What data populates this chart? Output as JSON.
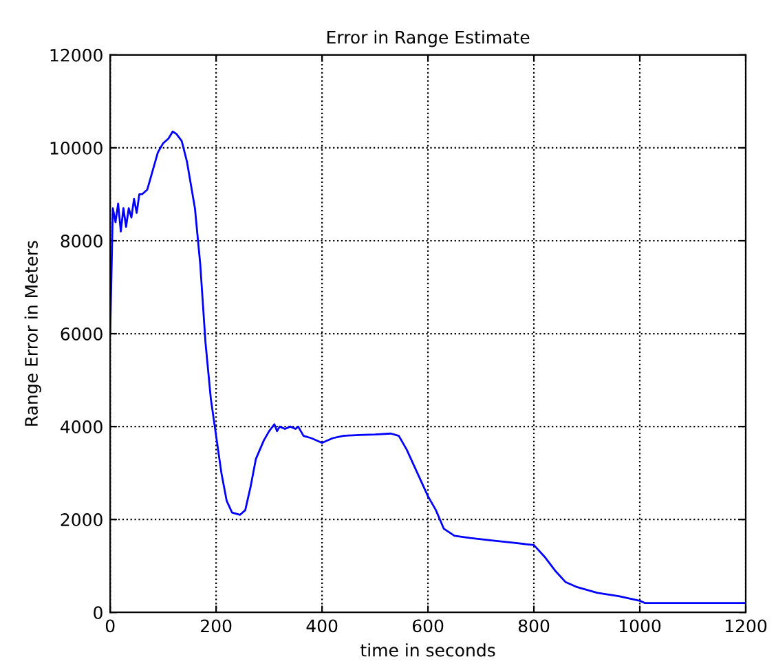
{
  "chart_data": {
    "type": "line",
    "title": "Error in Range Estimate",
    "xlabel": "time in seconds",
    "ylabel": "Range Error in Meters",
    "xlim": [
      0,
      1200
    ],
    "ylim": [
      0,
      12000
    ],
    "xticks": [
      0,
      200,
      400,
      600,
      800,
      1000,
      1200
    ],
    "yticks": [
      0,
      2000,
      4000,
      6000,
      8000,
      10000,
      12000
    ],
    "grid": true,
    "series": [
      {
        "color": "#0000ff",
        "x": [
          0,
          5,
          10,
          15,
          20,
          25,
          30,
          35,
          40,
          45,
          50,
          55,
          60,
          70,
          80,
          90,
          100,
          110,
          118,
          125,
          135,
          145,
          160,
          170,
          180,
          190,
          200,
          210,
          220,
          230,
          245,
          255,
          265,
          275,
          290,
          300,
          310,
          315,
          320,
          330,
          340,
          350,
          355,
          365,
          380,
          400,
          420,
          440,
          470,
          500,
          530,
          545,
          560,
          580,
          600,
          615,
          630,
          650,
          680,
          720,
          760,
          800,
          820,
          840,
          860,
          880,
          920,
          960,
          1000,
          1010,
          1200
        ],
        "values": [
          6000,
          8700,
          8400,
          8800,
          8200,
          8700,
          8300,
          8700,
          8500,
          8900,
          8600,
          9000,
          9000,
          9100,
          9500,
          9900,
          10100,
          10200,
          10350,
          10300,
          10150,
          9700,
          8700,
          7500,
          5800,
          4600,
          3800,
          3000,
          2400,
          2150,
          2100,
          2200,
          2700,
          3300,
          3700,
          3900,
          4050,
          3900,
          4000,
          3950,
          4000,
          3950,
          4000,
          3800,
          3750,
          3650,
          3750,
          3800,
          3820,
          3830,
          3850,
          3800,
          3500,
          3000,
          2500,
          2200,
          1800,
          1650,
          1600,
          1550,
          1500,
          1450,
          1200,
          900,
          650,
          550,
          420,
          350,
          250,
          200,
          200
        ]
      }
    ]
  }
}
